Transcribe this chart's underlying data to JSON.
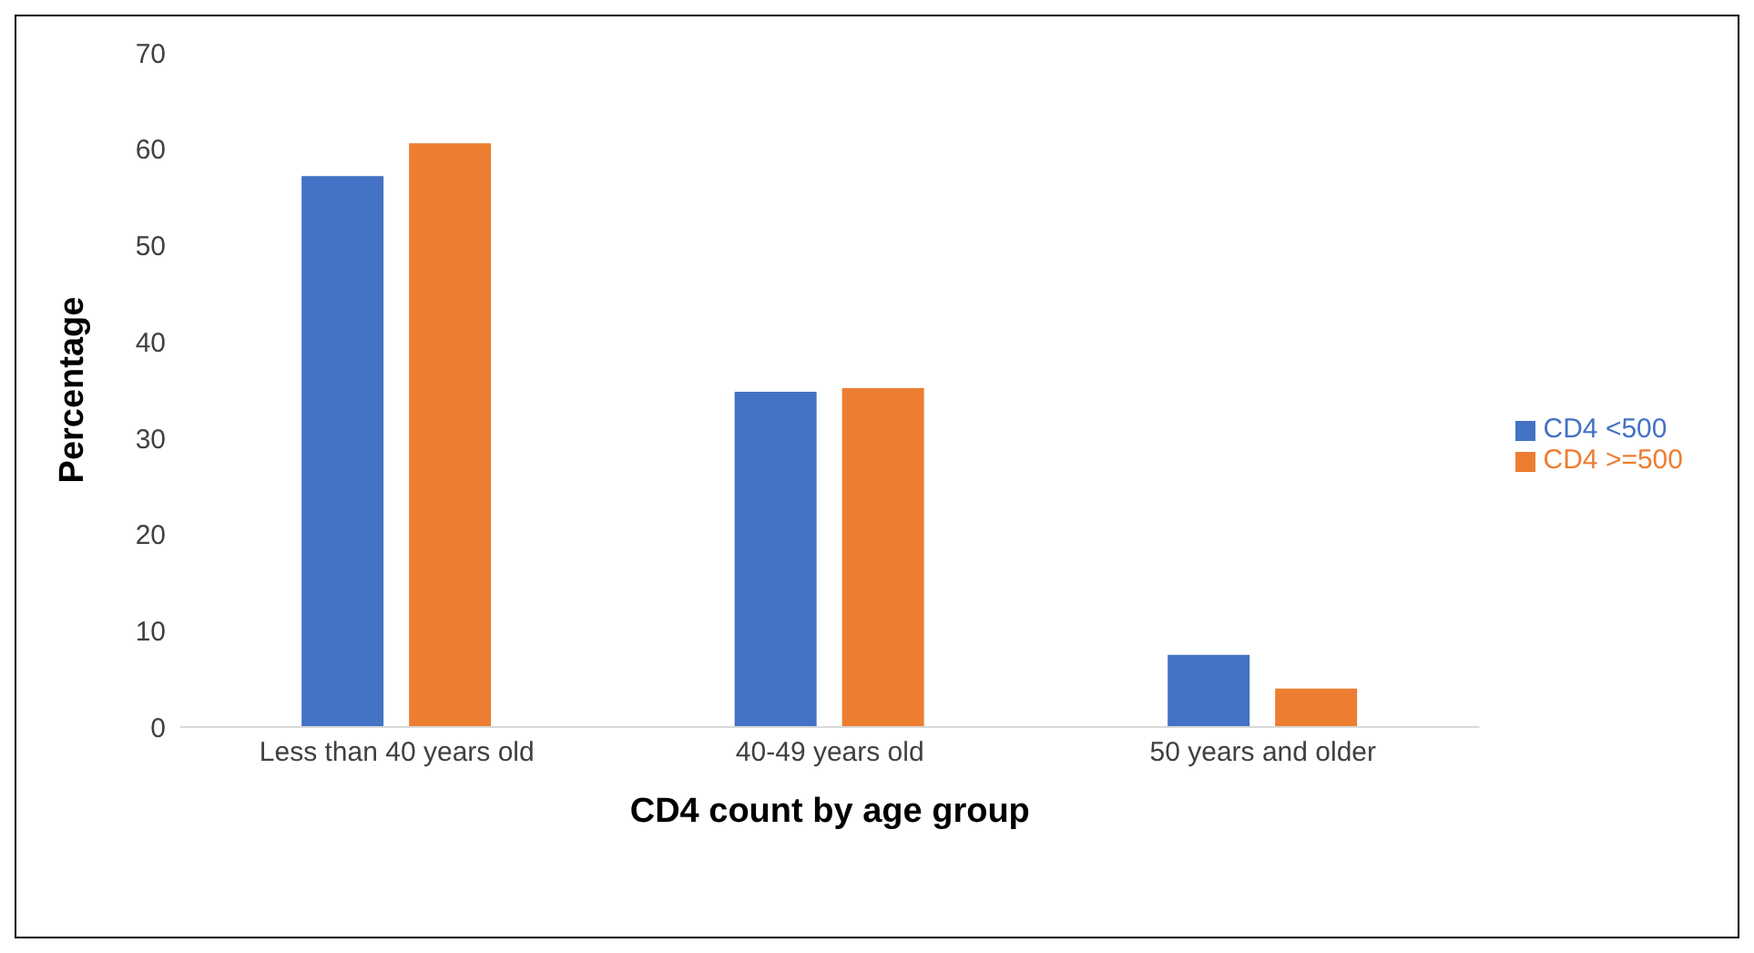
{
  "chart_data": {
    "type": "bar",
    "xlabel": "CD4 count by age group",
    "ylabel": "Percentage",
    "categories": [
      "Less than 40 years old",
      "40-49 years old",
      "50 years and older"
    ],
    "series": [
      {
        "name": "CD4 <500",
        "color": "#4472c4",
        "values": [
          57.2,
          34.8,
          7.5
        ]
      },
      {
        "name": "CD4 >=500",
        "color": "#ed7d31",
        "values": [
          60.6,
          35.2,
          4.0
        ]
      }
    ],
    "ylim": [
      0,
      70
    ],
    "yticks": [
      0,
      10,
      20,
      30,
      40,
      50,
      60,
      70
    ],
    "legend": "right"
  }
}
